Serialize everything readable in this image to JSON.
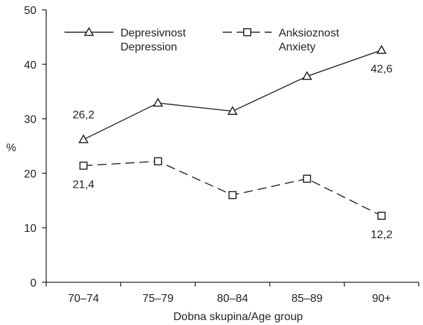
{
  "chart_data": {
    "type": "line",
    "categories": [
      "70–74",
      "75–79",
      "80–84",
      "85–89",
      "90+"
    ],
    "series": [
      {
        "name_lines": [
          "Depresivnost",
          "Depression"
        ],
        "values": [
          26.2,
          32.9,
          31.4,
          37.8,
          42.6
        ],
        "marker": "triangle",
        "dash": "solid",
        "labels": [
          {
            "index": 0,
            "text": "26,2",
            "place": "above"
          },
          {
            "index": 4,
            "text": "42,6",
            "place": "below"
          }
        ]
      },
      {
        "name_lines": [
          "Anksioznost",
          "Anxiety"
        ],
        "values": [
          21.4,
          22.2,
          16.0,
          19.0,
          12.2
        ],
        "marker": "square",
        "dash": "dashed",
        "labels": [
          {
            "index": 0,
            "text": "21,4",
            "place": "below"
          },
          {
            "index": 4,
            "text": "12,2",
            "place": "below"
          }
        ]
      }
    ],
    "xlabel": "Dobna skupina/Age group",
    "ylabel": "%",
    "ylim": [
      0,
      50
    ],
    "yticks": [
      "0",
      "10",
      "20",
      "30",
      "40",
      "50"
    ],
    "grid": false,
    "legend": "top",
    "colors": {
      "line": "#222222",
      "background": "#ffffff"
    }
  }
}
